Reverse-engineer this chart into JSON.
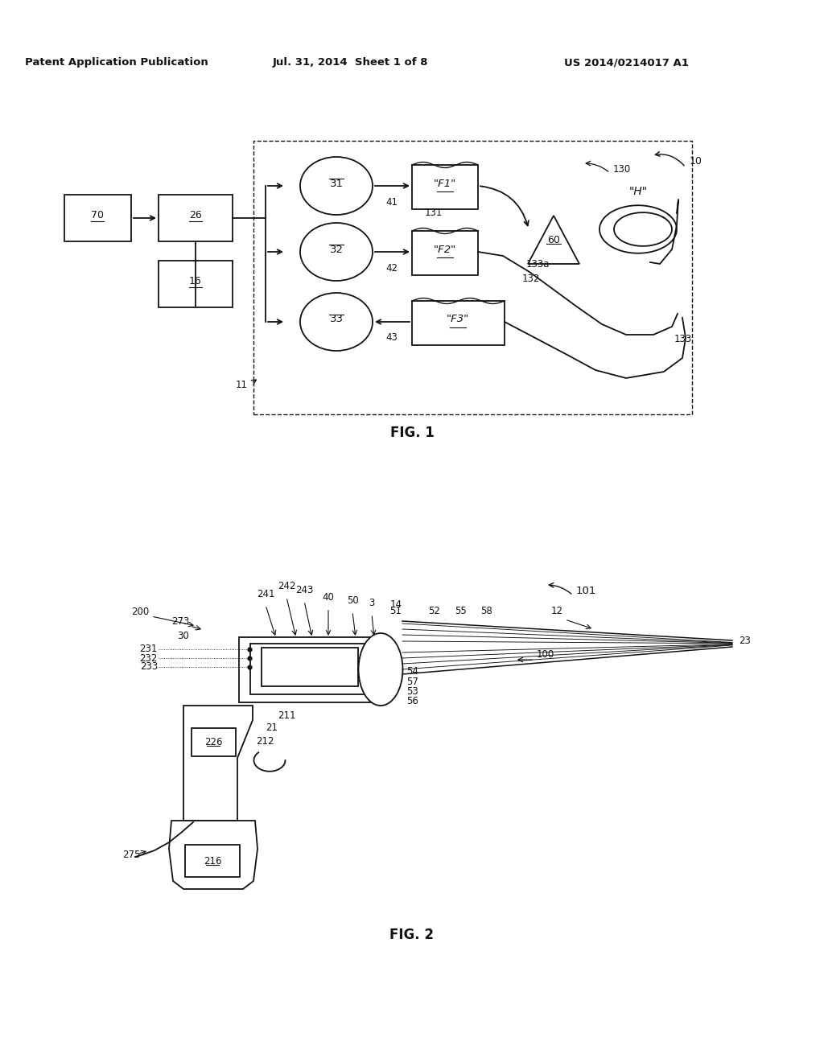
{
  "bg_color": "#ffffff",
  "header_text": "Patent Application Publication",
  "header_date": "Jul. 31, 2014  Sheet 1 of 8",
  "header_patent": "US 2014/0214017 A1",
  "fig1_label": "FIG. 1",
  "fig2_label": "FIG. 2",
  "black": "#111111"
}
